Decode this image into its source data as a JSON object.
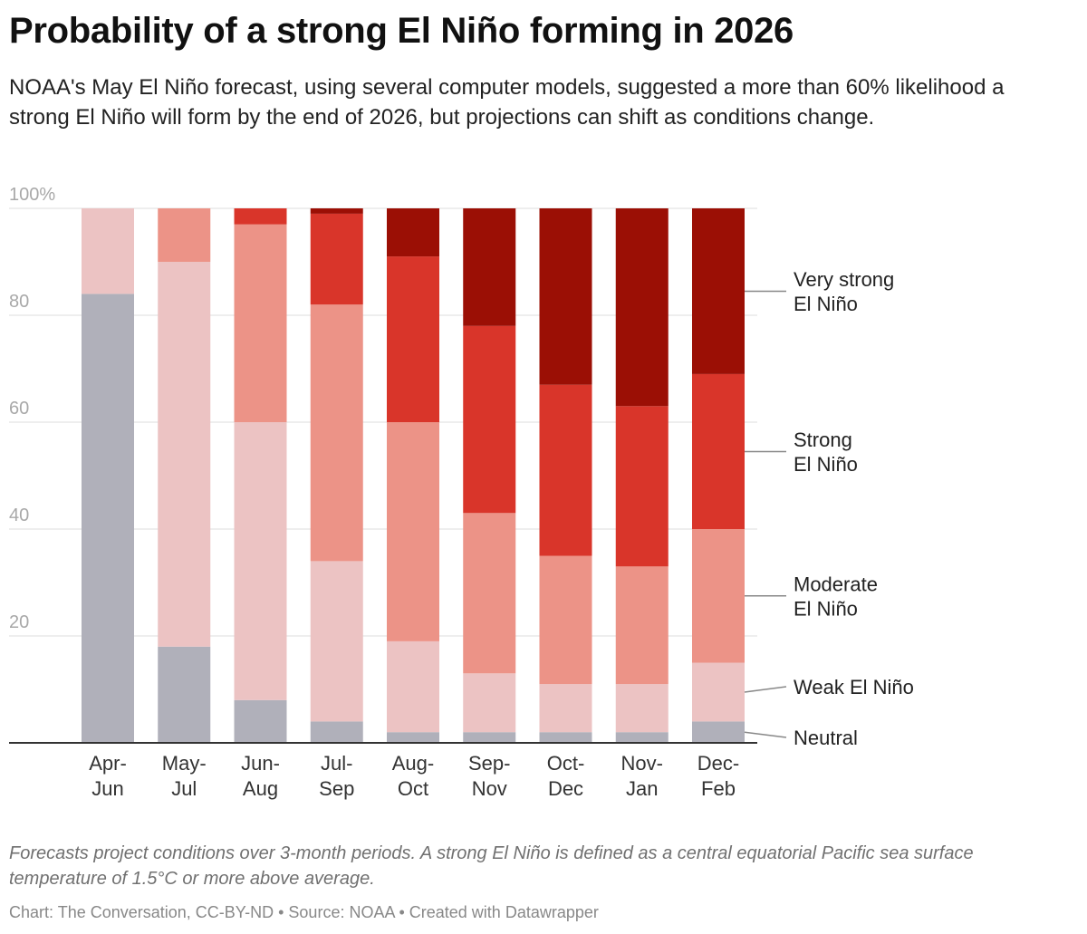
{
  "header": {
    "title": "Probability of a strong El Niño forming in 2026",
    "subtitle": "NOAA's May El Niño forecast, using several computer models, suggested a more than 60% likelihood a strong El Niño will form by the end of 2026, but projections can shift as conditions change."
  },
  "footer": {
    "notes": "Forecasts project conditions over 3-month periods. A strong El Niño is defined as a central equatorial Pacific sea surface temperature of 1.5°C or more above average.",
    "credit": "Chart: The Conversation, CC-BY-ND • Source: NOAA • Created with Datawrapper"
  },
  "chart_data": {
    "type": "bar",
    "stacked": true,
    "categories": [
      [
        "Apr-",
        "Jun"
      ],
      [
        "May-",
        "Jul"
      ],
      [
        "Jun-",
        "Aug"
      ],
      [
        "Jul-",
        "Sep"
      ],
      [
        "Aug-",
        "Oct"
      ],
      [
        "Sep-",
        "Nov"
      ],
      [
        "Oct-",
        "Dec"
      ],
      [
        "Nov-",
        "Jan"
      ],
      [
        "Dec-",
        "Feb"
      ]
    ],
    "ylim": [
      0,
      100
    ],
    "yticks": [
      {
        "value": 100,
        "label": "100%"
      },
      {
        "value": 80,
        "label": "80"
      },
      {
        "value": 60,
        "label": "60"
      },
      {
        "value": 40,
        "label": "40"
      },
      {
        "value": 20,
        "label": "20"
      }
    ],
    "grid": true,
    "legend_placement": "right, labels beside last bar",
    "series": [
      {
        "name": "Neutral",
        "label_lines": [
          "Neutral"
        ],
        "color": "#b0b0ba",
        "values": [
          84,
          18,
          8,
          4,
          2,
          2,
          2,
          2,
          4
        ]
      },
      {
        "name": "Weak El Niño",
        "label_lines": [
          "Weak El Niño"
        ],
        "color": "#ecc3c3",
        "values": [
          16,
          72,
          52,
          30,
          17,
          11,
          9,
          9,
          11
        ]
      },
      {
        "name": "Moderate El Niño",
        "label_lines": [
          "Moderate",
          "El Niño"
        ],
        "color": "#ec9387",
        "values": [
          0,
          10,
          37,
          48,
          41,
          30,
          24,
          22,
          25
        ]
      },
      {
        "name": "Strong El Niño",
        "label_lines": [
          "Strong",
          "El Niño"
        ],
        "color": "#d9352a",
        "values": [
          0,
          0,
          3,
          17,
          31,
          35,
          32,
          30,
          29
        ]
      },
      {
        "name": "Very strong El Niño",
        "label_lines": [
          "Very strong",
          "El Niño"
        ],
        "color": "#9b0f05",
        "values": [
          0,
          0,
          0,
          1,
          9,
          22,
          33,
          37,
          31
        ]
      }
    ]
  }
}
